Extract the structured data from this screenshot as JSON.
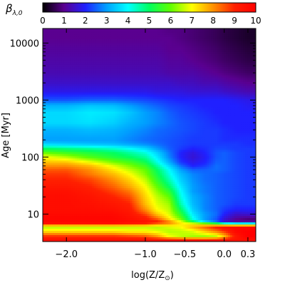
{
  "chart_data": {
    "type": "heatmap",
    "title": "",
    "xlabel": "log(Z/Z⊙)",
    "ylabel": "Age [Myr]",
    "x_ticks": [
      -2.0,
      -1.0,
      -0.5,
      0.0,
      0.3
    ],
    "x_tick_labels": [
      "−2.0",
      "−1.0",
      "−0.5",
      "0.0",
      "0.3"
    ],
    "xlim": [
      -2.3,
      0.4
    ],
    "y_scale": "log",
    "y_ticks": [
      10,
      100,
      1000,
      10000
    ],
    "y_tick_labels": [
      "10",
      "100",
      "1000",
      "10000"
    ],
    "ylim": [
      3.3,
      18000
    ],
    "colorbar": {
      "label": "β",
      "label_subscript": "λ,0",
      "min": 0,
      "max": 10,
      "ticks": [
        0,
        1,
        2,
        3,
        4,
        5,
        6,
        7,
        8,
        9,
        10
      ],
      "colormap": "rainbow",
      "stops": [
        "#000000",
        "#5a0090",
        "#2020ff",
        "#00a0ff",
        "#00ffff",
        "#00ff60",
        "#60ff00",
        "#ffff00",
        "#ff9000",
        "#ff2000",
        "#ff0000"
      ],
      "position": "top"
    },
    "grid": false,
    "age_samples_myr": [
      3.5,
      4,
      5,
      6,
      6.8,
      7.5,
      8,
      9,
      10,
      12,
      15,
      20,
      25,
      30,
      40,
      50,
      60,
      70,
      80,
      100,
      120,
      140,
      170,
      200,
      300,
      400,
      600,
      800,
      1000,
      1400,
      2000,
      3000,
      5000,
      8000,
      12000,
      18000
    ],
    "metallicity_samples": [
      -2.3,
      -2.0,
      -1.7,
      -1.4,
      -1.2,
      -1.0,
      -0.85,
      -0.7,
      -0.55,
      -0.4,
      -0.25,
      -0.1,
      0.0,
      0.15,
      0.3,
      0.4
    ],
    "z_values": [
      [
        9.5,
        9.5,
        9.5,
        9.5,
        9.5,
        9.5,
        9.5,
        9.5,
        9.5,
        9.5,
        9.5,
        9.5,
        9.5,
        9.5,
        9.5,
        9.5
      ],
      [
        9.0,
        9.0,
        9.0,
        9.0,
        8.8,
        8.6,
        8.0,
        7.0,
        6.6,
        6.4,
        6.3,
        6.5,
        7.5,
        9.3,
        10.0,
        10.0
      ],
      [
        7.2,
        7.2,
        7.2,
        7.2,
        7.0,
        7.0,
        6.8,
        6.5,
        6.6,
        6.8,
        7.5,
        8.2,
        8.8,
        9.8,
        10.0,
        10.0
      ],
      [
        6.5,
        6.5,
        6.5,
        6.5,
        6.6,
        6.6,
        6.5,
        6.8,
        7.0,
        7.8,
        8.5,
        9.2,
        9.7,
        9.8,
        9.8,
        9.8
      ],
      [
        9.5,
        9.5,
        9.5,
        9.5,
        9.2,
        9.0,
        8.5,
        8.0,
        7.2,
        6.8,
        6.2,
        5.5,
        4.5,
        4.0,
        4.0,
        4.0
      ],
      [
        9.8,
        9.8,
        9.8,
        9.8,
        9.6,
        9.4,
        9.0,
        8.0,
        6.8,
        5.0,
        3.5,
        2.5,
        1.5,
        1.0,
        1.0,
        1.0
      ],
      [
        9.8,
        9.8,
        9.8,
        9.8,
        9.6,
        9.2,
        8.6,
        7.4,
        6.2,
        4.2,
        3.0,
        2.4,
        1.6,
        1.0,
        0.8,
        0.8
      ],
      [
        9.8,
        9.8,
        9.8,
        9.8,
        9.5,
        9.0,
        8.0,
        7.0,
        5.8,
        4.0,
        3.0,
        2.5,
        1.8,
        1.3,
        1.2,
        1.2
      ],
      [
        9.7,
        9.7,
        9.7,
        9.7,
        9.4,
        8.6,
        7.5,
        6.8,
        5.5,
        3.8,
        3.0,
        2.6,
        2.0,
        1.5,
        1.6,
        1.6
      ],
      [
        9.6,
        9.6,
        9.6,
        9.5,
        9.2,
        8.0,
        7.0,
        6.6,
        5.0,
        3.5,
        2.8,
        2.5,
        2.2,
        2.0,
        2.0,
        2.0
      ],
      [
        9.6,
        9.6,
        9.5,
        9.3,
        9.0,
        7.6,
        6.8,
        6.4,
        4.5,
        3.3,
        2.8,
        2.5,
        2.4,
        2.2,
        2.2,
        2.2
      ],
      [
        9.6,
        9.6,
        9.4,
        9.0,
        8.6,
        7.4,
        6.6,
        6.0,
        4.2,
        3.2,
        2.8,
        2.5,
        2.4,
        2.3,
        2.2,
        2.2
      ],
      [
        9.5,
        9.5,
        9.2,
        8.7,
        8.2,
        7.2,
        6.3,
        5.5,
        4.0,
        3.0,
        2.7,
        2.5,
        2.4,
        2.3,
        2.2,
        2.2
      ],
      [
        9.3,
        9.3,
        9.0,
        8.4,
        7.8,
        7.0,
        6.0,
        5.0,
        3.8,
        3.0,
        2.7,
        2.5,
        2.4,
        2.3,
        2.2,
        2.2
      ],
      [
        9.0,
        9.0,
        8.7,
        8.0,
        7.4,
        6.6,
        5.5,
        4.5,
        3.5,
        2.9,
        2.6,
        2.5,
        2.4,
        2.3,
        2.2,
        2.2
      ],
      [
        8.8,
        8.8,
        8.2,
        7.6,
        7.0,
        6.2,
        5.2,
        4.2,
        3.3,
        2.8,
        2.6,
        2.5,
        2.4,
        2.3,
        2.2,
        2.2
      ],
      [
        8.5,
        8.5,
        8.0,
        7.2,
        6.6,
        6.0,
        5.0,
        4.0,
        3.0,
        2.5,
        2.5,
        2.6,
        2.5,
        2.3,
        2.2,
        2.2
      ],
      [
        8.0,
        8.0,
        7.6,
        6.8,
        6.2,
        5.6,
        4.6,
        3.6,
        2.6,
        2.0,
        2.2,
        2.6,
        2.5,
        2.3,
        2.2,
        2.2
      ],
      [
        7.6,
        7.6,
        7.0,
        6.2,
        5.8,
        5.2,
        4.2,
        3.2,
        2.2,
        1.8,
        2.0,
        2.5,
        2.5,
        2.3,
        2.2,
        2.2
      ],
      [
        7.0,
        6.5,
        5.8,
        5.3,
        5.0,
        4.6,
        3.8,
        2.8,
        2.0,
        1.6,
        1.9,
        2.4,
        2.5,
        2.3,
        2.2,
        2.2
      ],
      [
        6.0,
        5.6,
        5.3,
        5.0,
        4.6,
        4.2,
        3.5,
        2.7,
        2.0,
        1.7,
        2.0,
        2.4,
        2.5,
        2.3,
        2.2,
        2.2
      ],
      [
        5.0,
        4.8,
        4.6,
        4.3,
        4.0,
        3.6,
        3.0,
        2.5,
        2.2,
        2.0,
        2.1,
        2.3,
        2.3,
        2.2,
        2.2,
        2.2
      ],
      [
        3.5,
        3.4,
        3.3,
        3.2,
        3.0,
        2.8,
        2.6,
        2.4,
        2.3,
        2.2,
        2.2,
        2.2,
        2.2,
        2.2,
        2.1,
        2.1
      ],
      [
        3.0,
        3.0,
        3.0,
        3.0,
        2.8,
        2.6,
        2.5,
        2.4,
        2.3,
        2.2,
        2.2,
        2.2,
        2.1,
        2.1,
        2.1,
        2.1
      ],
      [
        3.2,
        3.2,
        3.3,
        3.2,
        3.0,
        2.8,
        2.6,
        2.5,
        2.4,
        2.3,
        2.2,
        2.2,
        2.1,
        2.0,
        2.0,
        2.0
      ],
      [
        3.6,
        3.6,
        3.7,
        3.5,
        3.2,
        3.0,
        2.8,
        2.6,
        2.4,
        2.3,
        2.2,
        2.1,
        2.0,
        2.0,
        2.0,
        2.0
      ],
      [
        3.6,
        3.6,
        3.8,
        3.7,
        3.4,
        3.0,
        2.8,
        2.5,
        2.3,
        2.2,
        2.1,
        2.0,
        2.0,
        2.0,
        2.0,
        2.0
      ],
      [
        3.2,
        3.2,
        3.4,
        3.3,
        3.0,
        2.7,
        2.5,
        2.3,
        2.2,
        2.1,
        2.0,
        2.0,
        2.0,
        2.0,
        1.9,
        1.9
      ],
      [
        2.4,
        2.4,
        2.5,
        2.5,
        2.4,
        2.3,
        2.2,
        2.1,
        2.0,
        2.0,
        2.0,
        2.0,
        2.0,
        1.9,
        1.8,
        1.8
      ],
      [
        1.8,
        1.8,
        1.8,
        1.8,
        1.8,
        1.8,
        1.7,
        1.7,
        1.7,
        1.6,
        1.6,
        1.6,
        1.5,
        1.4,
        1.3,
        1.3
      ],
      [
        1.5,
        1.5,
        1.5,
        1.5,
        1.5,
        1.5,
        1.5,
        1.5,
        1.4,
        1.4,
        1.3,
        1.3,
        1.2,
        1.1,
        1.0,
        1.0
      ],
      [
        1.3,
        1.3,
        1.3,
        1.3,
        1.3,
        1.3,
        1.3,
        1.2,
        1.2,
        1.2,
        1.1,
        1.0,
        0.9,
        0.8,
        0.7,
        0.7
      ],
      [
        1.2,
        1.2,
        1.2,
        1.2,
        1.2,
        1.2,
        1.2,
        1.1,
        1.1,
        1.0,
        0.9,
        0.8,
        0.7,
        0.6,
        0.5,
        0.5
      ],
      [
        1.1,
        1.1,
        1.1,
        1.1,
        1.1,
        1.1,
        1.1,
        1.0,
        1.0,
        0.9,
        0.8,
        0.7,
        0.6,
        0.5,
        0.4,
        0.4
      ],
      [
        1.0,
        1.0,
        1.0,
        1.0,
        1.0,
        1.0,
        1.0,
        1.0,
        0.9,
        0.8,
        0.7,
        0.6,
        0.5,
        0.4,
        0.3,
        0.3
      ],
      [
        1.0,
        1.0,
        1.0,
        1.0,
        1.0,
        1.0,
        1.0,
        0.9,
        0.9,
        0.8,
        0.7,
        0.6,
        0.5,
        0.4,
        0.3,
        0.3
      ]
    ]
  }
}
